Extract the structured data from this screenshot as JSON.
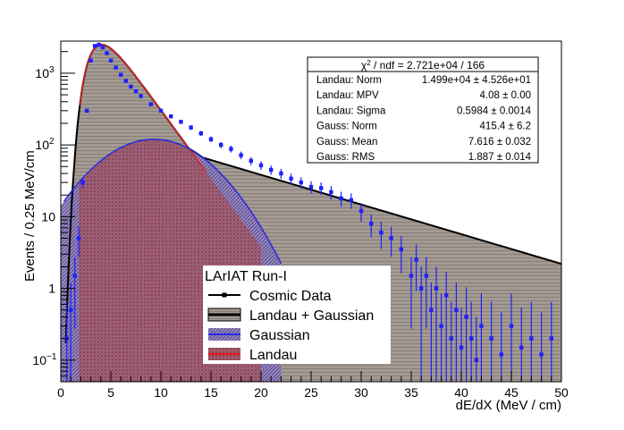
{
  "chart_data": {
    "type": "line",
    "xlabel": "dE/dX (MeV / cm)",
    "ylabel": "Events / 0.25 MeV/cm",
    "xlim": [
      0,
      50
    ],
    "ylim": [
      0.05,
      2800
    ],
    "y_log_scale": true,
    "x_ticks": [
      "0",
      "5",
      "10",
      "15",
      "20",
      "25",
      "30",
      "35",
      "40",
      "45",
      "50"
    ],
    "y_ticks": [
      {
        "value": 0.1,
        "label": "10",
        "sup": "−1"
      },
      {
        "value": 1,
        "label": "1",
        "sup": ""
      },
      {
        "value": 10,
        "label": "10",
        "sup": ""
      },
      {
        "value": 100,
        "label": "10",
        "sup": "2"
      },
      {
        "value": 1000,
        "label": "10",
        "sup": "3"
      }
    ],
    "stats": {
      "header": {
        "prefix": "χ",
        "sup": "2",
        "suffix": " / ndf = 2.721e+04 / 166"
      },
      "rows": [
        {
          "name": "Landau: Norm",
          "value": "1.499e+04 ± 4.526e+01"
        },
        {
          "name": "Landau: MPV",
          "value": "4.08 ± 0.00"
        },
        {
          "name": "Landau: Sigma",
          "value": "0.5984 ± 0.0014"
        },
        {
          "name": "Gauss: Norm",
          "value": "415.4 ± 6.2"
        },
        {
          "name": "Gauss: Mean",
          "value": "7.616 ± 0.032"
        },
        {
          "name": "Gauss: RMS",
          "value": "1.887 ± 0.014"
        }
      ]
    },
    "legend": {
      "title": "LArIAT Run-I",
      "placement": "bottom-center",
      "entries": [
        {
          "label": "Cosmic Data",
          "key": "data"
        },
        {
          "label": "Landau + Gaussian",
          "key": "total"
        },
        {
          "label": "Gaussian",
          "key": "gauss"
        },
        {
          "label": "Landau",
          "key": "landau"
        }
      ]
    },
    "colors": {
      "data": "#1f1fff",
      "gauss_line": "#2a2ae0",
      "landau_line": "#e02020",
      "fill_hatch": "#444444",
      "gauss_fill": "#5f3da0",
      "landau_fill": "#a02030"
    },
    "series": [
      {
        "name": "Cosmic Data",
        "style": "points",
        "x": [
          0.6,
          1.0,
          1.4,
          1.8,
          2.2,
          2.6,
          3.0,
          3.4,
          3.8,
          4.2,
          4.6,
          5.0,
          5.5,
          6.0,
          6.5,
          7.0,
          7.5,
          8.0,
          9.0,
          10.0,
          11.0,
          12.0,
          13.0,
          14.0,
          15.0,
          16.0,
          17.0,
          18.0,
          19.0,
          20.0,
          21.0,
          22.0,
          23.0,
          24.0,
          25.0,
          26.0,
          27.0,
          28.0,
          29.0,
          30.0,
          31.0,
          32.0,
          33.0,
          34.0,
          35.0,
          35.5,
          36.0,
          36.5,
          37.0,
          37.5,
          38.0,
          38.5,
          39.0,
          39.5,
          40.0,
          40.5,
          41.0,
          41.5,
          42.0,
          43.0,
          44.0,
          45.0,
          46.0,
          47.0,
          48.0,
          49.0
        ],
        "y": [
          0.2,
          0.5,
          1.5,
          5,
          30,
          300,
          1500,
          2400,
          2500,
          2300,
          1900,
          1500,
          1200,
          950,
          780,
          650,
          560,
          480,
          370,
          300,
          250,
          210,
          175,
          145,
          120,
          100,
          88,
          72,
          60,
          52,
          45,
          40,
          34,
          30,
          26,
          25,
          22,
          18,
          17,
          12,
          8,
          6,
          5,
          3.5,
          1.5,
          2.5,
          1,
          1.5,
          0.5,
          1,
          0.3,
          0.8,
          0.2,
          0.5,
          0.15,
          0.4,
          0.2,
          0.1,
          0.3,
          0.2,
          0.12,
          0.3,
          0.15,
          0.2,
          0.12,
          0.2
        ]
      }
    ],
    "fit": {
      "landau": {
        "norm": 14990,
        "mpv": 4.08,
        "sigma": 0.5984
      },
      "gauss": {
        "norm": 415.4,
        "mean": 7.616,
        "rms": 1.887
      },
      "gauss_curve_param_x": {
        "mean": 9.3,
        "sigma": 4.5,
        "peak": 120
      }
    }
  }
}
